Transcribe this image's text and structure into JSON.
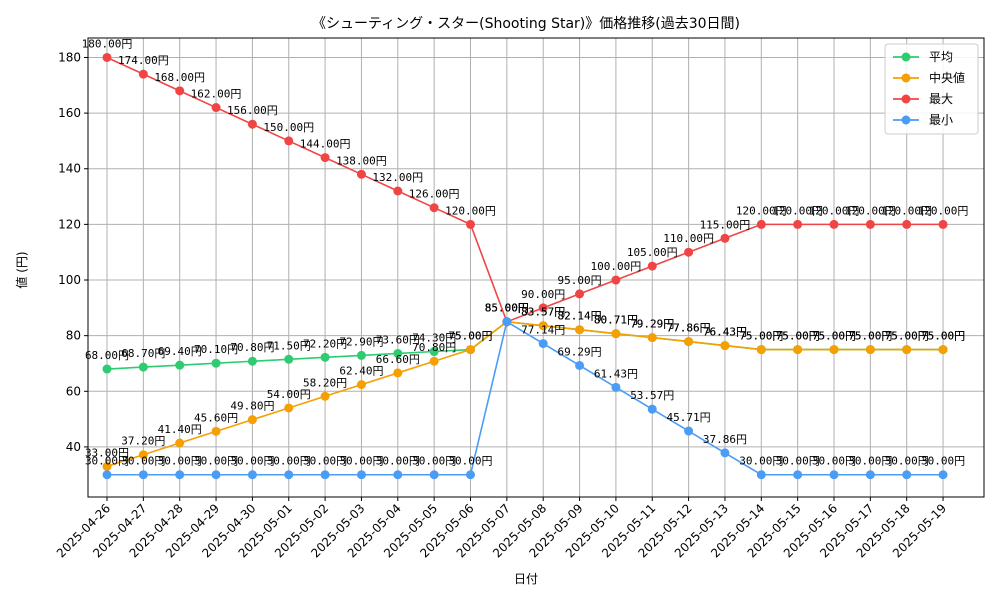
{
  "chart_data": {
    "type": "line",
    "title": "《シューティング・スター(Shooting Star)》価格推移(過去30日間)",
    "xlabel": "日付",
    "ylabel": "値 (円)",
    "ylim": [
      22,
      187
    ],
    "yticks": [
      40,
      60,
      80,
      100,
      120,
      140,
      160,
      180
    ],
    "grid": true,
    "legend_position": "top-right",
    "value_suffix": "円",
    "categories": [
      "2025-04-26",
      "2025-04-27",
      "2025-04-28",
      "2025-04-29",
      "2025-04-30",
      "2025-05-01",
      "2025-05-02",
      "2025-05-03",
      "2025-05-04",
      "2025-05-05",
      "2025-05-06",
      "2025-05-07",
      "2025-05-08",
      "2025-05-09",
      "2025-05-10",
      "2025-05-11",
      "2025-05-12",
      "2025-05-13",
      "2025-05-14",
      "2025-05-15",
      "2025-05-16",
      "2025-05-17",
      "2025-05-18",
      "2025-05-19"
    ],
    "series": [
      {
        "name": "平均",
        "color": "#2ecc71",
        "values": [
          68.0,
          68.7,
          69.4,
          70.1,
          70.8,
          71.5,
          72.2,
          72.9,
          73.6,
          74.3,
          75.0,
          85.0,
          83.57,
          82.14,
          80.71,
          79.29,
          77.86,
          76.43,
          75.0,
          75.0,
          75.0,
          75.0,
          75.0,
          75.0
        ],
        "label_from": 0,
        "label_to": 23
      },
      {
        "name": "中央値",
        "color": "#f5a000",
        "values": [
          33.0,
          37.2,
          41.4,
          45.6,
          49.8,
          54.0,
          58.2,
          62.4,
          66.6,
          70.8,
          75.0,
          85.0,
          83.57,
          82.14,
          80.71,
          79.29,
          77.86,
          76.43,
          75.0,
          75.0,
          75.0,
          75.0,
          75.0,
          75.0
        ],
        "label_from": 0,
        "label_to": 23
      },
      {
        "name": "最大",
        "color": "#f04545",
        "values": [
          180.0,
          174.0,
          168.0,
          162.0,
          156.0,
          150.0,
          144.0,
          138.0,
          132.0,
          126.0,
          120.0,
          85.0,
          90.0,
          95.0,
          100.0,
          105.0,
          110.0,
          115.0,
          120.0,
          120.0,
          120.0,
          120.0,
          120.0,
          120.0
        ],
        "label_from": 0,
        "label_to": 23
      },
      {
        "name": "最小",
        "color": "#4a9cf5",
        "values": [
          30.0,
          30.0,
          30.0,
          30.0,
          30.0,
          30.0,
          30.0,
          30.0,
          30.0,
          30.0,
          30.0,
          85.0,
          77.14,
          69.29,
          61.43,
          53.57,
          45.71,
          37.86,
          30.0,
          30.0,
          30.0,
          30.0,
          30.0,
          30.0
        ],
        "label_from": 0,
        "label_to": 23
      }
    ]
  }
}
